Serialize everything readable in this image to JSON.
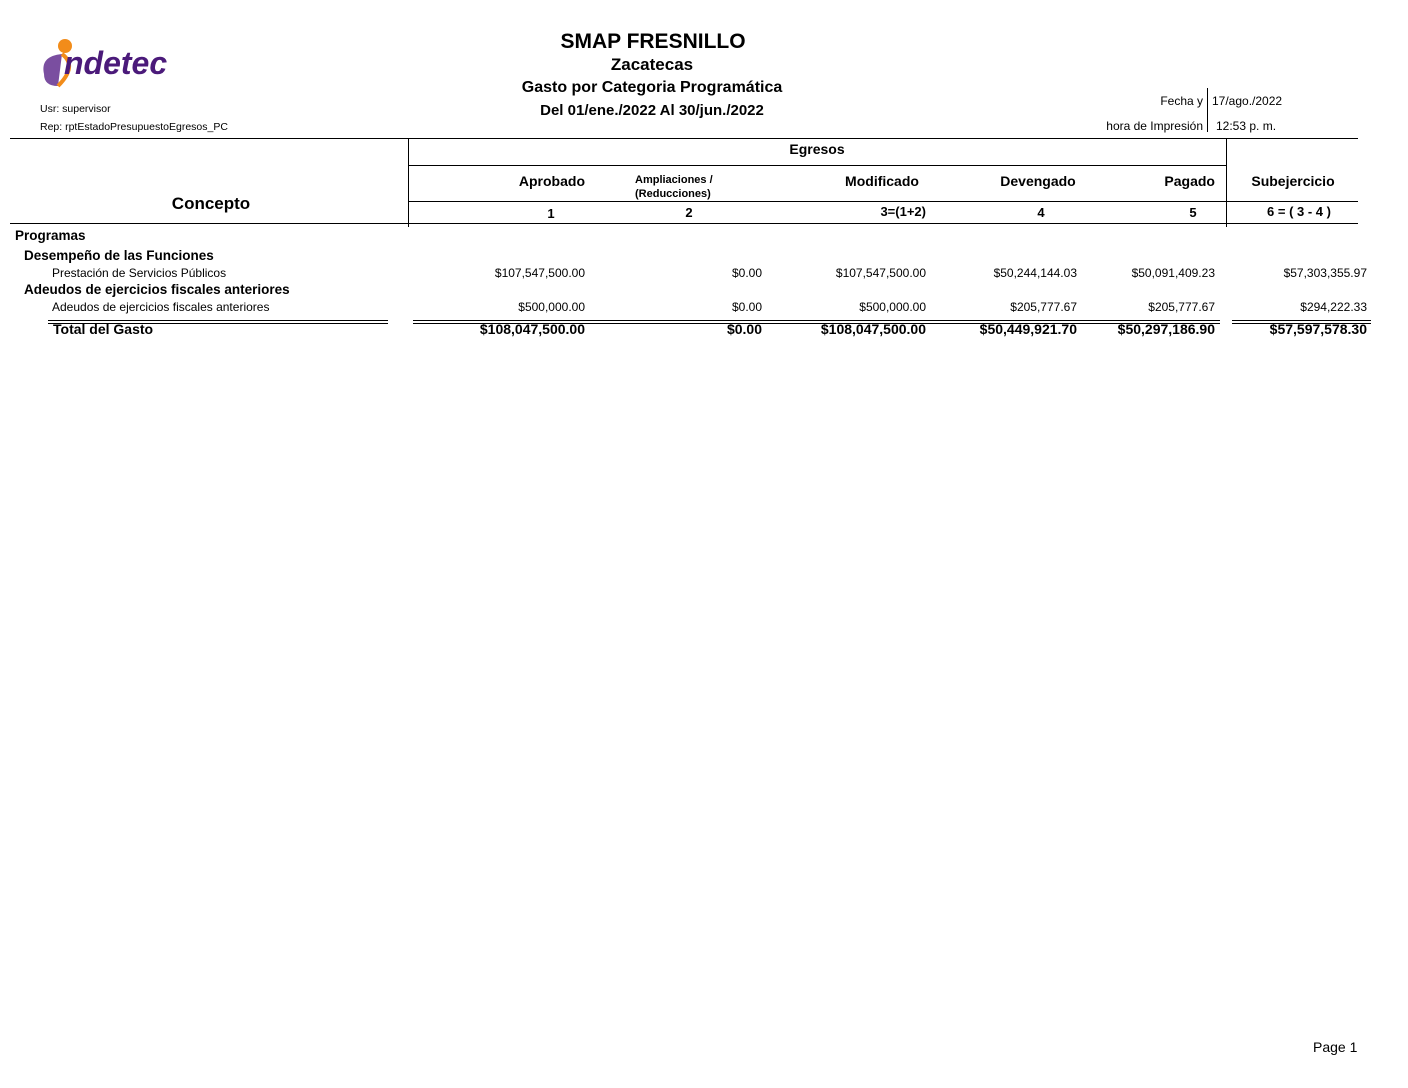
{
  "logo": {
    "text": "indetec",
    "colors": {
      "purple": "#4b1a7a",
      "orange": "#f28c1a"
    }
  },
  "header": {
    "title": "SMAP FRESNILLO",
    "state": "Zacatecas",
    "report": "Gasto por Categoria Programática",
    "period": "Del 01/ene./2022 Al 30/jun./2022",
    "user": "Usr: supervisor",
    "rep": "Rep: rptEstadoPresupuestoEgresos_PC",
    "fecha_label": "Fecha y",
    "fecha_value": "17/ago./2022",
    "hora_label": "hora de Impresión",
    "hora_value": "12:53 p. m."
  },
  "table": {
    "concepto": "Concepto",
    "egresos": "Egresos",
    "columns": [
      {
        "label": "Aprobado",
        "num": "1"
      },
      {
        "label": "Ampliaciones /",
        "label2": "(Reducciones)",
        "num": "2"
      },
      {
        "label": "Modificado",
        "num": "3=(1+2)"
      },
      {
        "label": "Devengado",
        "num": "4"
      },
      {
        "label": "Pagado",
        "num": "5"
      },
      {
        "label": "Subejercicio",
        "num": "6 = ( 3 - 4 )"
      }
    ],
    "section": "Programas",
    "groups": [
      {
        "name": "Desempeño de las Funciones",
        "rows": [
          {
            "concepto": "Prestación de Servicios Públicos",
            "values": [
              "$107,547,500.00",
              "$0.00",
              "$107,547,500.00",
              "$50,244,144.03",
              "$50,091,409.23",
              "$57,303,355.97"
            ]
          }
        ]
      },
      {
        "name": "Adeudos de ejercicios fiscales anteriores",
        "rows": [
          {
            "concepto": "Adeudos de ejercicios fiscales anteriores",
            "values": [
              "$500,000.00",
              "$0.00",
              "$500,000.00",
              "$205,777.67",
              "$205,777.67",
              "$294,222.33"
            ]
          }
        ]
      }
    ],
    "total": {
      "label": "Total del Gasto",
      "values": [
        "$108,047,500.00",
        "$0.00",
        "$108,047,500.00",
        "$50,449,921.70",
        "$50,297,186.90",
        "$57,597,578.30"
      ]
    }
  },
  "footer": {
    "page": "Page 1"
  }
}
